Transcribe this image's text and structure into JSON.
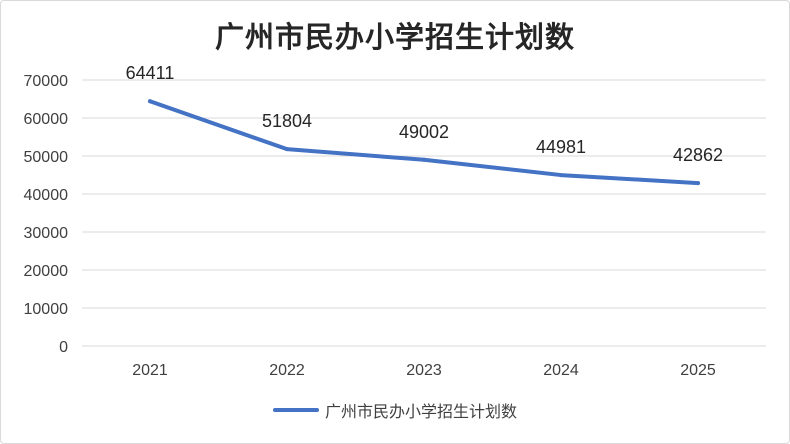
{
  "chart_data": {
    "type": "line",
    "title": "广州市民办小学招生计划数",
    "categories": [
      "2021",
      "2022",
      "2023",
      "2024",
      "2025"
    ],
    "series": [
      {
        "name": "广州市民办小学招生计划数",
        "values": [
          64411,
          51804,
          49002,
          44981,
          42862
        ],
        "color": "#4472c4"
      }
    ],
    "ylim": [
      0,
      70000
    ],
    "yticks": [
      "0",
      "10000",
      "20000",
      "30000",
      "40000",
      "50000",
      "60000",
      "70000"
    ],
    "grid": true,
    "legend_position": "bottom",
    "xlabel": "",
    "ylabel": ""
  }
}
